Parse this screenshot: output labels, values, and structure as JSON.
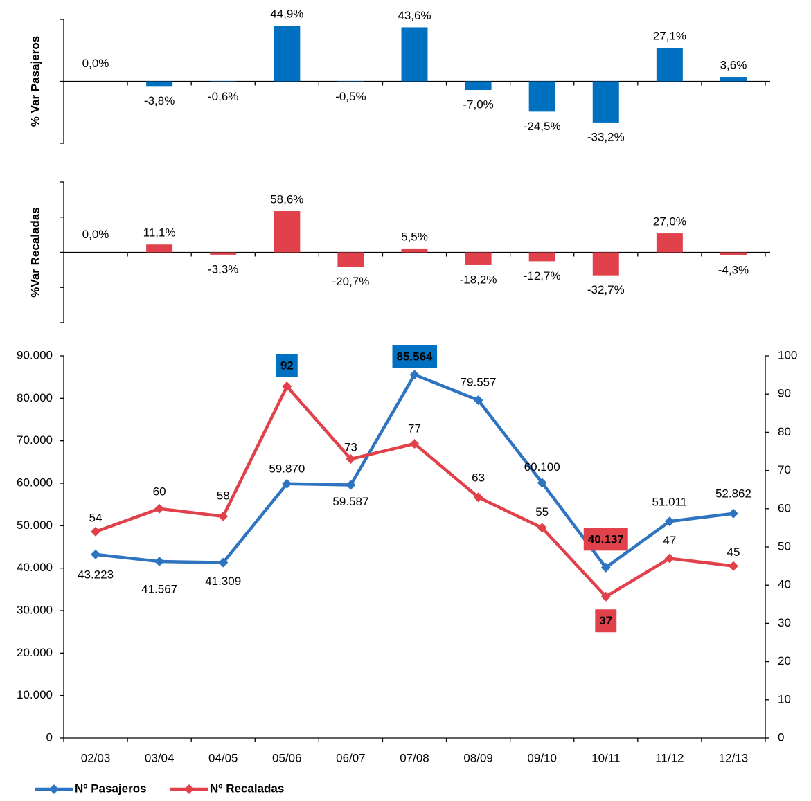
{
  "chart_data": [
    {
      "type": "bar",
      "y_label": "% Var Pasajeros",
      "color": "#0070c0",
      "values": [
        0.0,
        -3.8,
        -0.6,
        44.9,
        -0.5,
        43.6,
        -7.0,
        -24.5,
        -33.2,
        27.1,
        3.6
      ],
      "value_labels": [
        "0,0%",
        "-3,8%",
        "-0,6%",
        "44,9%",
        "-0,5%",
        "43,6%",
        "-7,0%",
        "-24,5%",
        "-33,2%",
        "27,1%",
        "3,6%"
      ],
      "ylim": [
        -50,
        50
      ],
      "yticks": [
        -50,
        0,
        50
      ]
    },
    {
      "type": "bar",
      "y_label": "%Var Recaladas",
      "color": "#e0414b",
      "values": [
        0.0,
        11.1,
        -3.3,
        58.6,
        -20.7,
        5.5,
        -18.2,
        -12.7,
        -32.7,
        27.0,
        -4.3
      ],
      "value_labels": [
        "0,0%",
        "11,1%",
        "-3,3%",
        "58,6%",
        "-20,7%",
        "5,5%",
        "-18,2%",
        "-12,7%",
        "-32,7%",
        "27,0%",
        "-4,3%"
      ],
      "ylim": [
        -100,
        100
      ],
      "yticks": [
        -100,
        -50,
        0,
        50,
        100
      ]
    },
    {
      "type": "line",
      "categories": [
        "02/03",
        "03/04",
        "04/05",
        "05/06",
        "06/07",
        "07/08",
        "08/09",
        "09/10",
        "10/11",
        "11/12",
        "12/13"
      ],
      "series": [
        {
          "name": "Nº Pasajeros",
          "color": "#2e74c0",
          "values": [
            43223,
            41567,
            41309,
            59870,
            59587,
            85564,
            79557,
            60100,
            40137,
            51011,
            52862
          ],
          "value_labels": [
            "43.223",
            "41.567",
            "41.309",
            "59.870",
            "59.587",
            "85.564",
            "79.557",
            "60.100",
            "40.137",
            "51.011",
            "52.862"
          ]
        },
        {
          "name": "Nº Recaladas",
          "color": "#e0414b",
          "axis": "y2",
          "values": [
            54,
            60,
            58,
            92,
            73,
            77,
            63,
            55,
            37,
            47,
            45
          ]
        }
      ],
      "ylim": [
        0,
        90000
      ],
      "yticks": [
        0,
        {
          "value": 10000,
          "label": "10.000"
        },
        {
          "value": 20000,
          "label": "20.000"
        },
        {
          "value": 30000,
          "label": "30.000"
        },
        {
          "value": 40000,
          "label": "40.000"
        },
        {
          "value": 50000,
          "label": "50.000"
        },
        {
          "value": 60000,
          "label": "60.000"
        },
        {
          "value": 70000,
          "label": "70.000"
        },
        {
          "value": 80000,
          "label": "80.000"
        },
        {
          "value": 90000,
          "label": "90.000"
        }
      ],
      "y2lim": [
        0,
        100
      ],
      "y2ticks": [
        0,
        10,
        20,
        30,
        40,
        50,
        60,
        70,
        80,
        90,
        100
      ],
      "legend": "bottom-left"
    }
  ]
}
